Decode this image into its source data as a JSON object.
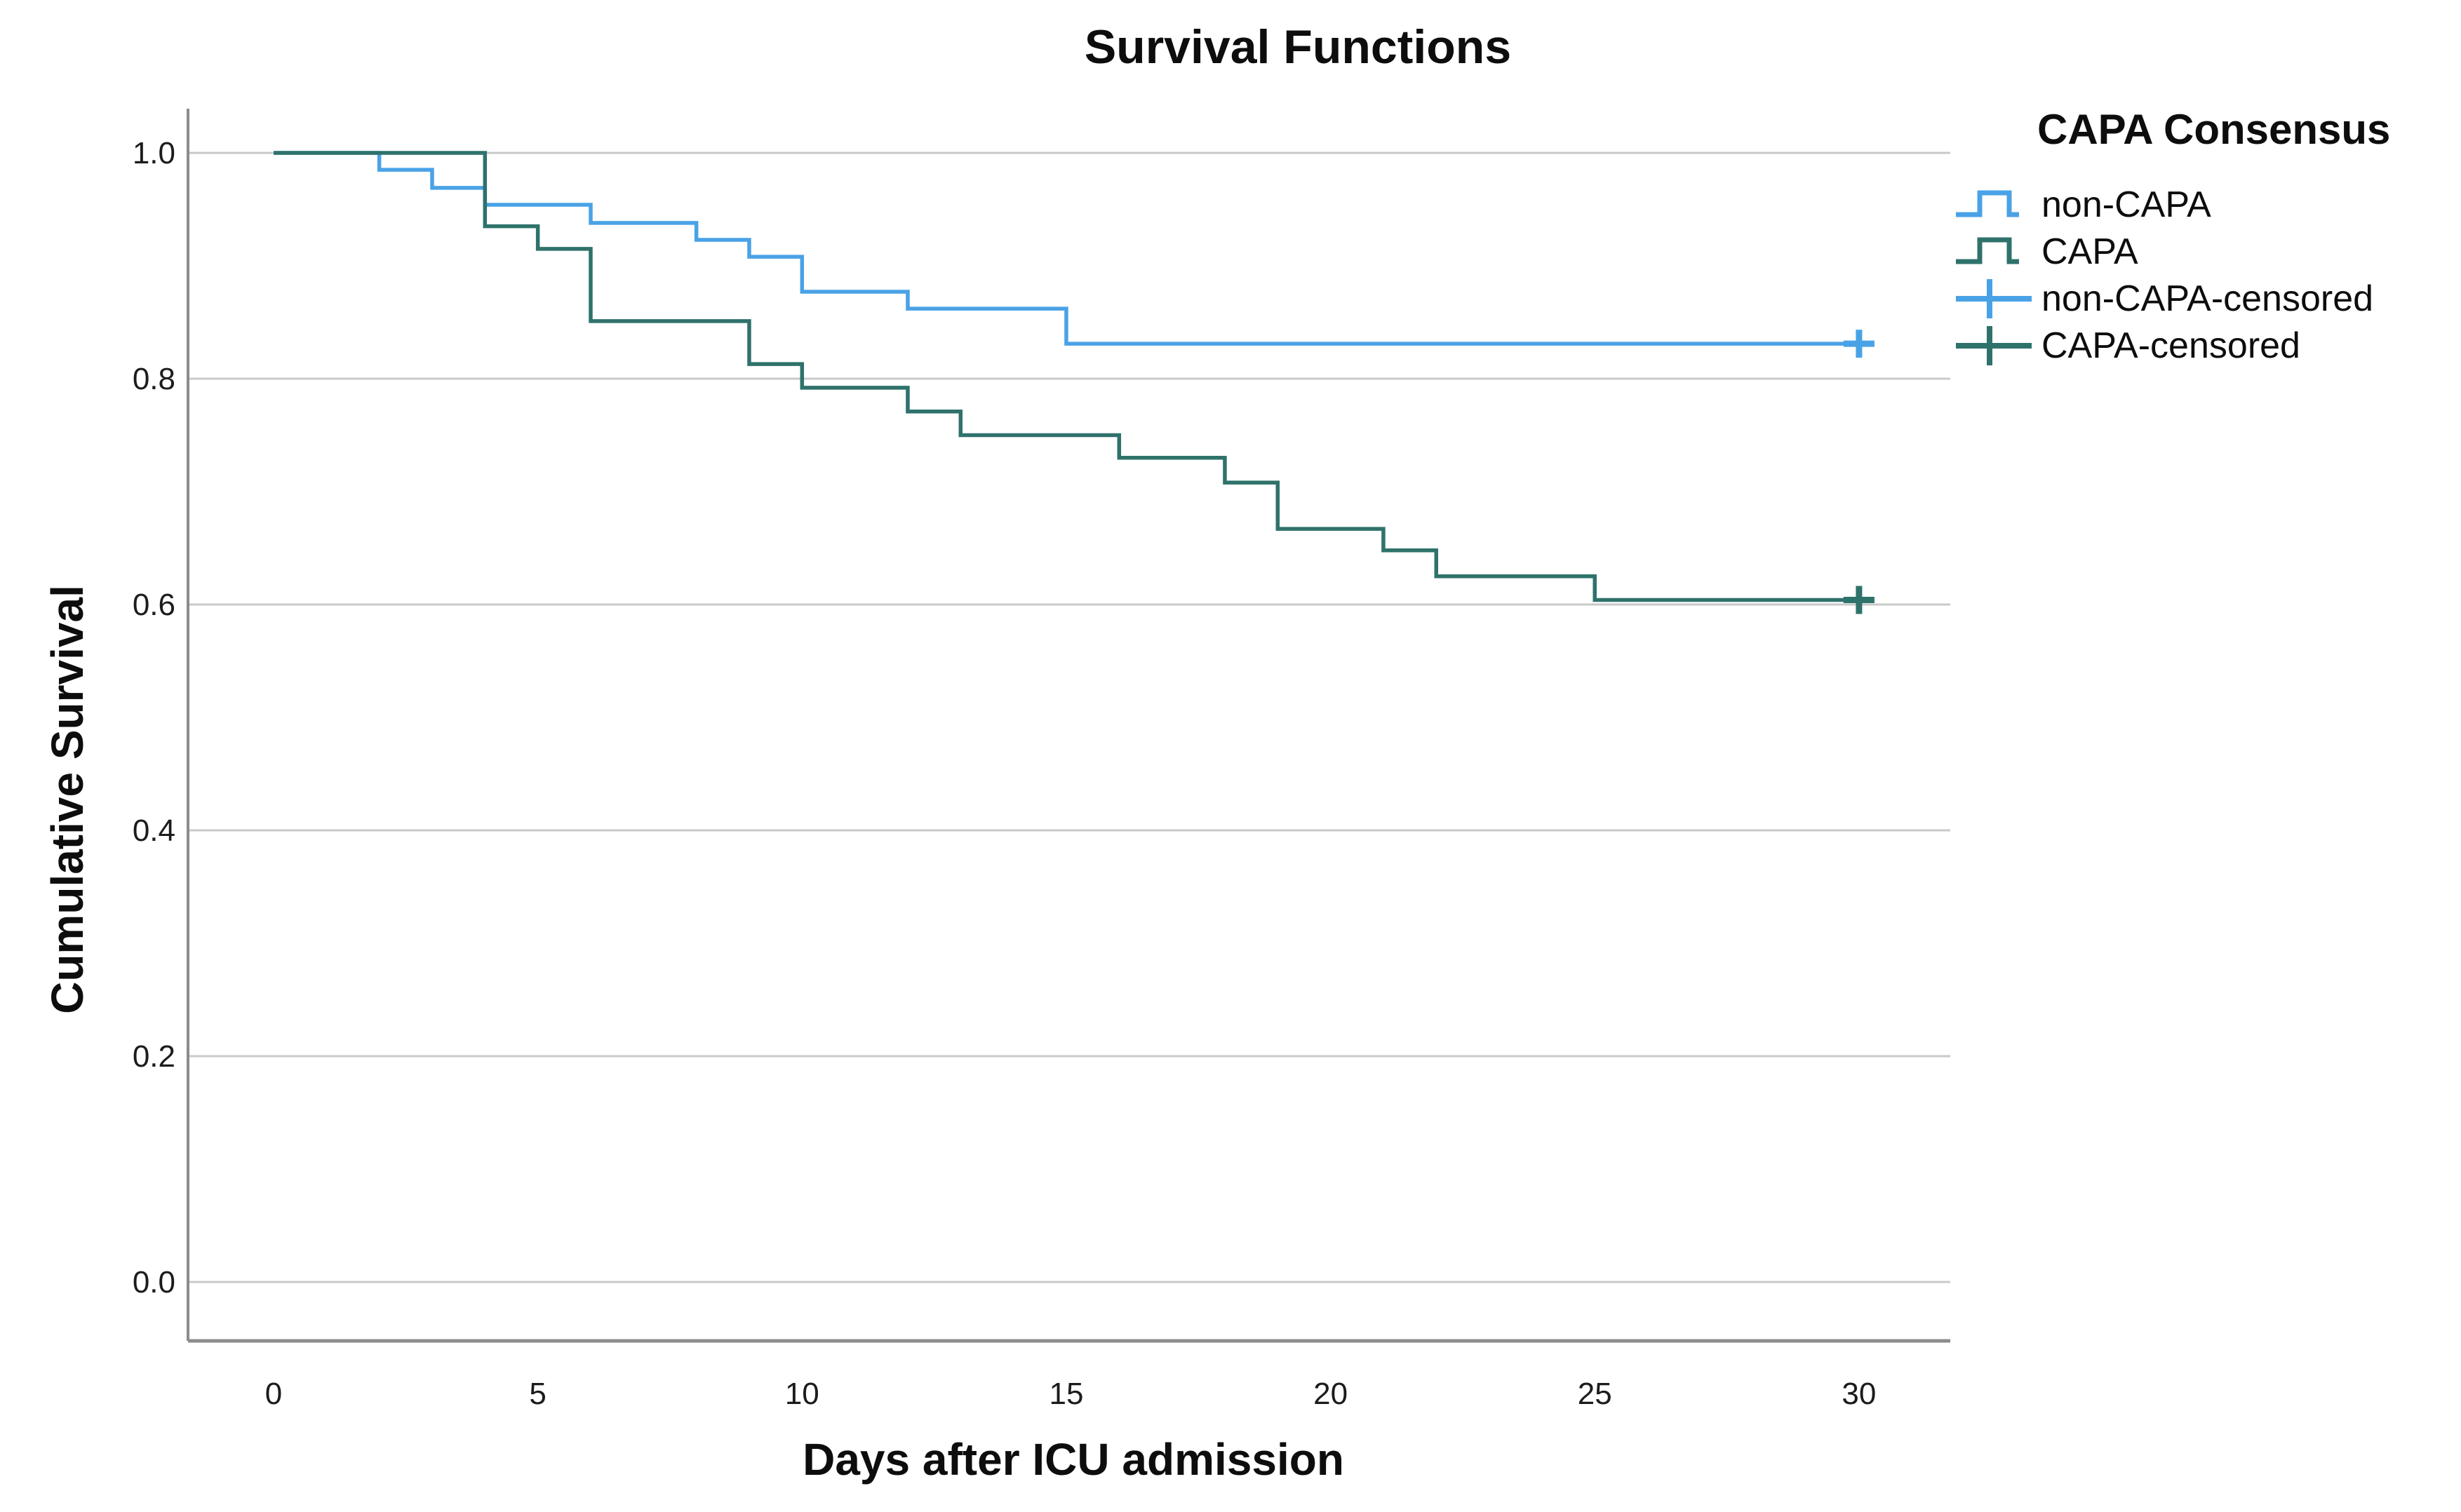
{
  "chart_data": {
    "type": "line",
    "subtype": "kaplan-meier-step",
    "title": "Survival Functions",
    "xlabel": "Days after ICU admission",
    "ylabel": "Cumulative Survival",
    "x_ticks": [
      0,
      5,
      10,
      15,
      20,
      25,
      30
    ],
    "x_tick_labels": [
      "0",
      "5",
      "10",
      "15",
      "20",
      "25",
      "30"
    ],
    "y_ticks": [
      1.0,
      0.8,
      0.6,
      0.4,
      0.2,
      0.0
    ],
    "y_tick_labels": [
      "1.0",
      "0.8",
      "0.6",
      "0.4",
      "0.2",
      "0.0"
    ],
    "xlim": [
      -1.6,
      31.7
    ],
    "ylim": [
      -0.05,
      1.04
    ],
    "grid": "horizontal",
    "grid_color": "#c9c9c9",
    "axis_color": "#8c8c8c",
    "text_color": "#1c1c1c",
    "series": [
      {
        "name": "non-CAPA",
        "color": "#4aa2e6",
        "points": [
          [
            0,
            1.0
          ],
          [
            2,
            0.985
          ],
          [
            3,
            0.969
          ],
          [
            4,
            0.954
          ],
          [
            6,
            0.938
          ],
          [
            8,
            0.923
          ],
          [
            9,
            0.908
          ],
          [
            10,
            0.877
          ],
          [
            12,
            0.862
          ],
          [
            15,
            0.831
          ],
          [
            30,
            0.831
          ]
        ],
        "censored": [
          [
            30,
            0.831
          ]
        ]
      },
      {
        "name": "CAPA",
        "color": "#2e726b",
        "points": [
          [
            0,
            1.0
          ],
          [
            4,
            0.935
          ],
          [
            5,
            0.915
          ],
          [
            6,
            0.851
          ],
          [
            9,
            0.813
          ],
          [
            10,
            0.792
          ],
          [
            12,
            0.771
          ],
          [
            13,
            0.75
          ],
          [
            16,
            0.73
          ],
          [
            18,
            0.708
          ],
          [
            19,
            0.667
          ],
          [
            21,
            0.648
          ],
          [
            22,
            0.625
          ],
          [
            25,
            0.604
          ],
          [
            30,
            0.604
          ]
        ],
        "censored": [
          [
            30,
            0.604
          ]
        ]
      }
    ],
    "legend": {
      "title": "CAPA Consensus",
      "position": "right",
      "entries": [
        {
          "label": "non-CAPA",
          "marker": "step-line",
          "color": "#4aa2e6"
        },
        {
          "label": "CAPA",
          "marker": "step-line",
          "color": "#2e726b"
        },
        {
          "label": "non-CAPA-censored",
          "marker": "plus",
          "color": "#4aa2e6"
        },
        {
          "label": "CAPA-censored",
          "marker": "plus",
          "color": "#2e726b"
        }
      ]
    }
  }
}
